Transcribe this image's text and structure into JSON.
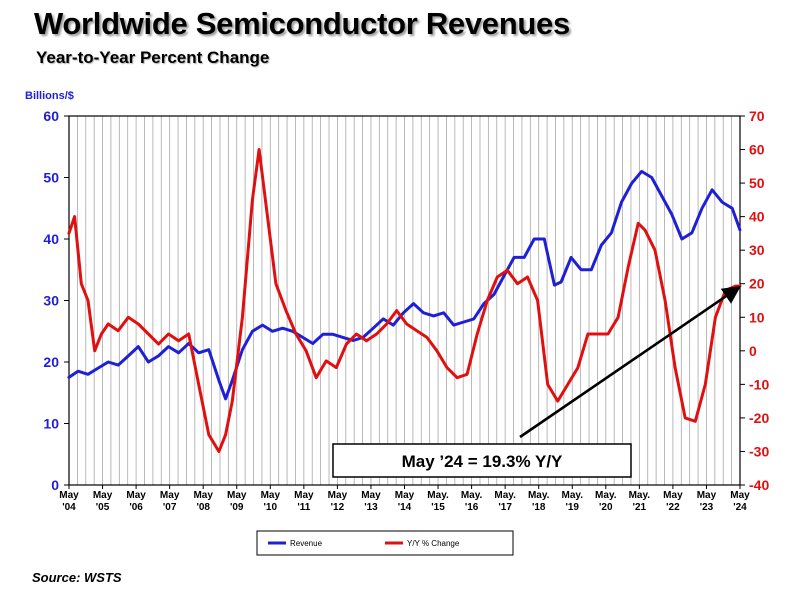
{
  "chart_data": {
    "type": "line",
    "title": "Worldwide Semiconductor Revenues",
    "subtitle": "Year-to-Year Percent Change",
    "ylabel_left": "Billions/$",
    "source": "Source: WSTS",
    "ylim_left": [
      0,
      60
    ],
    "ylim_right": [
      -40,
      70
    ],
    "yticks_left": [
      "0",
      "10",
      "20",
      "30",
      "40",
      "50",
      "60"
    ],
    "yticks_right": [
      "70",
      "60",
      "50",
      "40",
      "30",
      "20",
      "10",
      "0",
      "-10",
      "-20",
      "-30",
      "-40"
    ],
    "xlim": [
      2004.333,
      2024.333
    ],
    "x_tick_labels": [
      {
        "line1": "May",
        "line2": "'04"
      },
      {
        "line1": "May",
        "line2": "'05"
      },
      {
        "line1": "May",
        "line2": "'06"
      },
      {
        "line1": "May",
        "line2": "'07"
      },
      {
        "line1": "May",
        "line2": "'08"
      },
      {
        "line1": "May",
        "line2": "'09"
      },
      {
        "line1": "May",
        "line2": "'10"
      },
      {
        "line1": "May",
        "line2": "'11"
      },
      {
        "line1": "May",
        "line2": "'12"
      },
      {
        "line1": "May",
        "line2": "'13"
      },
      {
        "line1": "May",
        "line2": "'14"
      },
      {
        "line1": "May.",
        "line2": "'15"
      },
      {
        "line1": "May.",
        "line2": "'16"
      },
      {
        "line1": "May.",
        "line2": "'17"
      },
      {
        "line1": "May.",
        "line2": "'18"
      },
      {
        "line1": "May.",
        "line2": "'19"
      },
      {
        "line1": "May.",
        "line2": "'20"
      },
      {
        "line1": "May.",
        "line2": "'21"
      },
      {
        "line1": "May",
        "line2": "'22"
      },
      {
        "line1": "May",
        "line2": "'23"
      },
      {
        "line1": "May",
        "line2": "'24"
      }
    ],
    "grid": true,
    "legend_position": "bottom-center",
    "series": [
      {
        "name": "Revenue",
        "axis": "left",
        "color": "#1f1fd6",
        "x": [
          2004.33,
          2004.6,
          2004.9,
          2005.2,
          2005.5,
          2005.8,
          2006.1,
          2006.4,
          2006.7,
          2007.0,
          2007.3,
          2007.6,
          2007.9,
          2008.2,
          2008.5,
          2008.8,
          2009.0,
          2009.2,
          2009.5,
          2009.8,
          2010.1,
          2010.4,
          2010.7,
          2011.0,
          2011.3,
          2011.6,
          2011.9,
          2012.2,
          2012.5,
          2012.8,
          2013.1,
          2013.4,
          2013.7,
          2014.0,
          2014.3,
          2014.6,
          2014.9,
          2015.2,
          2015.5,
          2015.8,
          2016.1,
          2016.4,
          2016.7,
          2017.0,
          2017.3,
          2017.6,
          2017.9,
          2018.2,
          2018.5,
          2018.8,
          2019.0,
          2019.3,
          2019.6,
          2019.9,
          2020.2,
          2020.5,
          2020.8,
          2021.1,
          2021.4,
          2021.7,
          2022.0,
          2022.3,
          2022.6,
          2022.9,
          2023.2,
          2023.5,
          2023.8,
          2024.1,
          2024.33
        ],
        "y": [
          17.5,
          18.5,
          18,
          19,
          20,
          19.5,
          21,
          22.5,
          20,
          21,
          22.5,
          21.5,
          23,
          21.5,
          22,
          17,
          14,
          17,
          22,
          25,
          26,
          25,
          25.5,
          25,
          24,
          23,
          24.5,
          24.5,
          24,
          23.5,
          24,
          25.5,
          27,
          26,
          28,
          29.5,
          28,
          27.5,
          28,
          26,
          26.5,
          27,
          29.5,
          31,
          34,
          37,
          37,
          40,
          40,
          32.5,
          33,
          37,
          35,
          35,
          39,
          41,
          46,
          49,
          51,
          50,
          47,
          44,
          40,
          41,
          45,
          48,
          46,
          45,
          41.5
        ]
      },
      {
        "name": "Y/Y % Change",
        "axis": "right",
        "color": "#e01010",
        "x": [
          2004.33,
          2004.5,
          2004.7,
          2004.9,
          2005.1,
          2005.3,
          2005.5,
          2005.8,
          2006.1,
          2006.4,
          2006.7,
          2007.0,
          2007.3,
          2007.6,
          2007.9,
          2008.2,
          2008.5,
          2008.8,
          2009.0,
          2009.2,
          2009.5,
          2009.8,
          2010.0,
          2010.25,
          2010.5,
          2010.8,
          2011.1,
          2011.4,
          2011.7,
          2012.0,
          2012.3,
          2012.6,
          2012.9,
          2013.2,
          2013.5,
          2013.8,
          2014.1,
          2014.4,
          2014.7,
          2015.0,
          2015.3,
          2015.6,
          2015.9,
          2016.2,
          2016.5,
          2016.8,
          2017.1,
          2017.4,
          2017.7,
          2018.0,
          2018.3,
          2018.6,
          2018.9,
          2019.2,
          2019.5,
          2019.8,
          2020.1,
          2020.4,
          2020.7,
          2021.0,
          2021.3,
          2021.5,
          2021.8,
          2022.1,
          2022.4,
          2022.7,
          2023.0,
          2023.3,
          2023.6,
          2023.9,
          2024.2,
          2024.33
        ],
        "y": [
          35,
          40,
          20,
          15,
          0,
          5,
          8,
          6,
          10,
          8,
          5,
          2,
          5,
          3,
          5,
          -10,
          -25,
          -30,
          -25,
          -15,
          10,
          45,
          60,
          40,
          20,
          12,
          5,
          0,
          -8,
          -3,
          -5,
          2,
          5,
          3,
          5,
          8,
          12,
          8,
          6,
          4,
          0,
          -5,
          -8,
          -7,
          5,
          15,
          22,
          24,
          20,
          22,
          15,
          -10,
          -15,
          -10,
          -5,
          5,
          5,
          5,
          10,
          25,
          38,
          36,
          30,
          15,
          -5,
          -20,
          -21,
          -10,
          10,
          18,
          19.3,
          19.3
        ]
      }
    ],
    "annotation": "May ’24 = 19.3% Y/Y",
    "annotation_arrow_target": {
      "x": 2024.33,
      "y": 19.3
    }
  }
}
